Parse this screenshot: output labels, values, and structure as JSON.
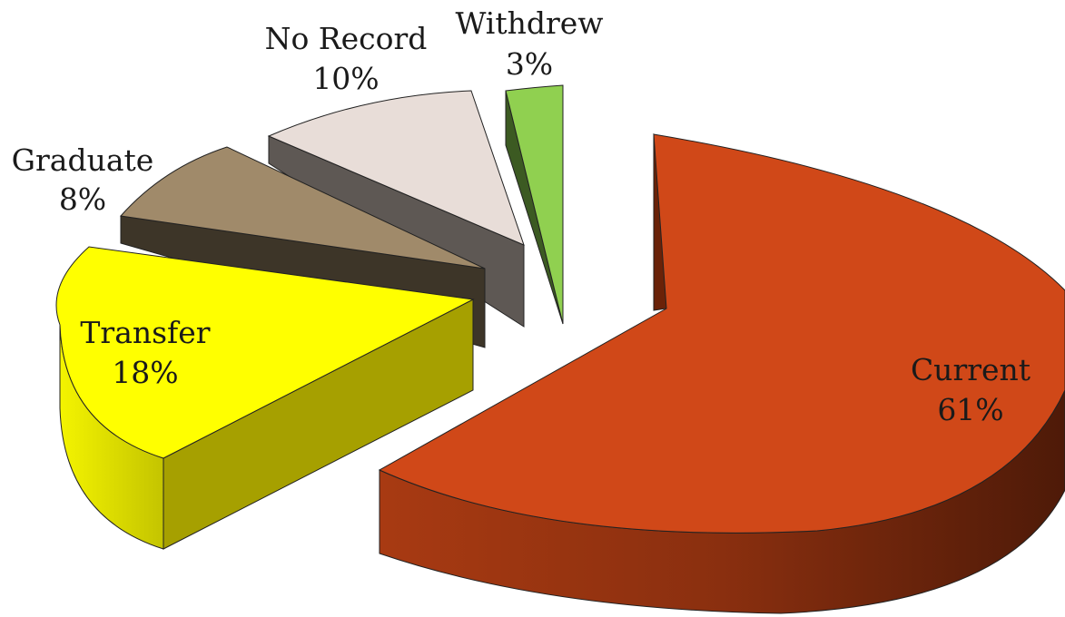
{
  "chart_data": {
    "type": "pie",
    "title": "",
    "style": "exploded 3D pie",
    "slices": [
      {
        "label": "Current",
        "value": 61,
        "value_label": "61%",
        "color": "#d04818"
      },
      {
        "label": "Transfer",
        "value": 18,
        "value_label": "18%",
        "color": "#ffff00"
      },
      {
        "label": "Graduate",
        "value": 8,
        "value_label": "8%",
        "color": "#a08a6a"
      },
      {
        "label": "No Record",
        "value": 10,
        "value_label": "10%",
        "color": "#e8ddd8"
      },
      {
        "label": "Withdrew",
        "value": 3,
        "value_label": "3%",
        "color": "#90d050"
      }
    ]
  }
}
